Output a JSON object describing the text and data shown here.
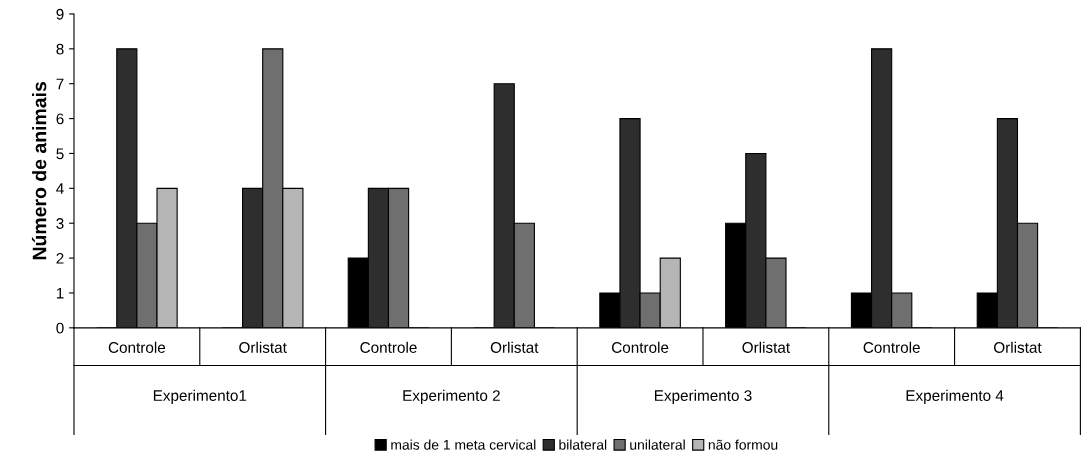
{
  "chart_data": {
    "type": "bar",
    "ylabel": "Número de animais",
    "categories": [
      "Controle",
      "Orlistat",
      "Controle",
      "Orlistat",
      "Controle",
      "Orlistat",
      "Controle",
      "Orlistat"
    ],
    "series": [
      {
        "name": "mais de 1 meta cervical",
        "color": "#000000",
        "values": [
          0,
          0,
          2,
          0,
          1,
          3,
          1,
          1
        ]
      },
      {
        "name": "bilateral",
        "color": "#2e2e2e",
        "values": [
          8,
          4,
          4,
          7,
          6,
          5,
          8,
          6
        ]
      },
      {
        "name": "unilateral",
        "color": "#6f6f6f",
        "values": [
          3,
          8,
          4,
          3,
          1,
          2,
          1,
          3
        ]
      },
      {
        "name": "não formou",
        "color": "#b5b5b5",
        "values": [
          4,
          4,
          0,
          0,
          2,
          0,
          0,
          0
        ]
      }
    ],
    "annotations": [
      "Experimento1",
      "Experimento 2",
      "Experimento 3",
      "Experimento 4"
    ],
    "ylim": [
      0,
      9
    ],
    "yticks": [
      0,
      1,
      2,
      3,
      4,
      5,
      6,
      7,
      8,
      9
    ],
    "grid": false,
    "legend": "bottom"
  }
}
